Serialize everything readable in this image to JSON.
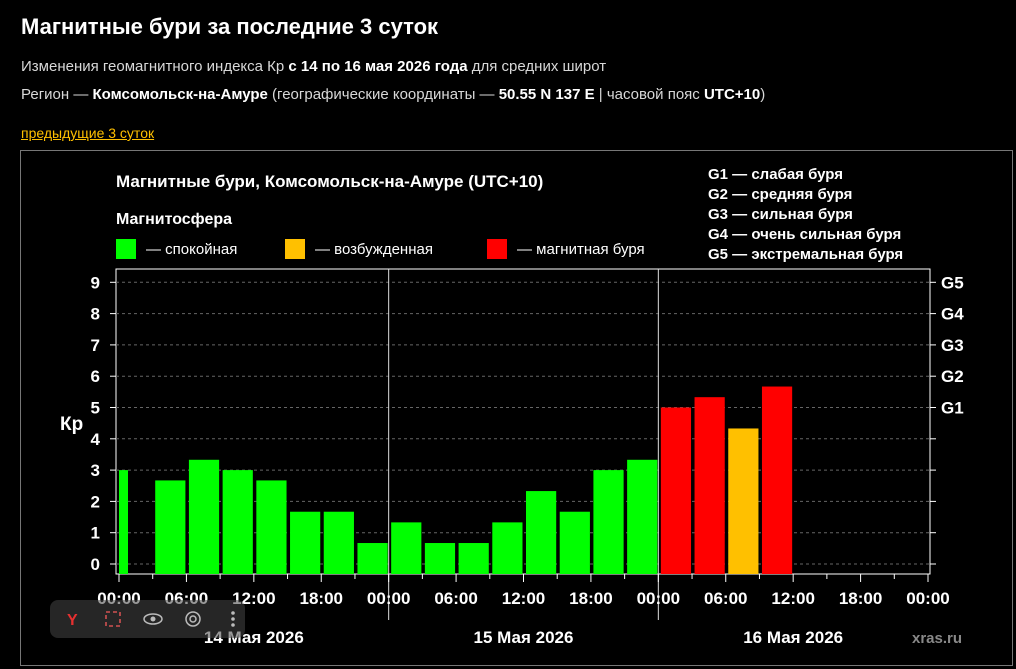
{
  "page": {
    "title": "Магнитные бури за последние 3 суток",
    "line1": {
      "prefix": "Изменения геомагнитного индекса Кр ",
      "bold": "с 14 по 16 мая 2026 года",
      "suffix": " для средних широт"
    },
    "line2": {
      "prefix": "Регион — ",
      "region": "Комсомольск-на-Амуре",
      "mid1": " (географические координаты — ",
      "coords": "50.55 N 137 E",
      "mid2": " | часовой пояс ",
      "tz": "UTC+10",
      "end": ")"
    },
    "prev_link": "предыдущие 3 суток",
    "watermark": "xras.ru"
  },
  "colors": {
    "calm": "#00ff00",
    "excited": "#ffc000",
    "storm": "#ff0000",
    "background": "#000000",
    "link": "#ffc000"
  },
  "overlay": {
    "icons": [
      "yandex-icon",
      "screenshot-icon",
      "eye-icon",
      "camera-icon",
      "more-icon"
    ]
  },
  "chart_data": {
    "type": "bar",
    "title": "Магнитные бури, Комсомольск-на-Амуре (UTC+10)",
    "ylabel": "Кр",
    "ylim": [
      0,
      9
    ],
    "yticks": [
      "0",
      "1",
      "2",
      "3",
      "4",
      "5",
      "6",
      "7",
      "8",
      "9"
    ],
    "grid": true,
    "legend": {
      "heading": "Магнитосфера",
      "items": [
        {
          "key": "calm",
          "label": "— спокойная"
        },
        {
          "key": "excited",
          "label": "— возбужденная"
        },
        {
          "key": "storm",
          "label": "— магнитная буря"
        }
      ]
    },
    "g_scale_legend": [
      "G1 — слабая буря",
      "G2 — средняя буря",
      "G3 — сильная буря",
      "G4 — очень сильная буря",
      "G5 — экстремальная буря"
    ],
    "right_axis": [
      {
        "label": "G1",
        "kp": 5
      },
      {
        "label": "G2",
        "kp": 6
      },
      {
        "label": "G3",
        "kp": 7
      },
      {
        "label": "G4",
        "kp": 8
      },
      {
        "label": "G5",
        "kp": 9
      }
    ],
    "x_tick_labels": [
      "00:00",
      "06:00",
      "12:00",
      "18:00",
      "00:00",
      "06:00",
      "12:00",
      "18:00",
      "00:00",
      "06:00",
      "12:00",
      "18:00",
      "00:00"
    ],
    "days": [
      "14 Мая 2026",
      "15 Мая 2026",
      "16 Мая 2026"
    ],
    "bars": [
      {
        "slot": 0,
        "value": 3.0,
        "level": "calm"
      },
      {
        "slot": 1,
        "value": 2.67,
        "level": "calm"
      },
      {
        "slot": 2,
        "value": 3.33,
        "level": "calm"
      },
      {
        "slot": 3,
        "value": 3.0,
        "level": "calm"
      },
      {
        "slot": 4,
        "value": 2.67,
        "level": "calm"
      },
      {
        "slot": 5,
        "value": 1.67,
        "level": "calm"
      },
      {
        "slot": 6,
        "value": 1.67,
        "level": "calm"
      },
      {
        "slot": 7,
        "value": 0.67,
        "level": "calm"
      },
      {
        "slot": 8,
        "value": 1.33,
        "level": "calm"
      },
      {
        "slot": 9,
        "value": 0.67,
        "level": "calm"
      },
      {
        "slot": 10,
        "value": 0.67,
        "level": "calm"
      },
      {
        "slot": 11,
        "value": 1.33,
        "level": "calm"
      },
      {
        "slot": 12,
        "value": 2.33,
        "level": "calm"
      },
      {
        "slot": 13,
        "value": 1.67,
        "level": "calm"
      },
      {
        "slot": 14,
        "value": 3.0,
        "level": "calm"
      },
      {
        "slot": 15,
        "value": 3.33,
        "level": "calm"
      },
      {
        "slot": 16,
        "value": 5.0,
        "level": "storm"
      },
      {
        "slot": 17,
        "value": 5.33,
        "level": "storm"
      },
      {
        "slot": 18,
        "value": 4.33,
        "level": "excited"
      },
      {
        "slot": 19,
        "value": 5.67,
        "level": "storm"
      }
    ]
  }
}
